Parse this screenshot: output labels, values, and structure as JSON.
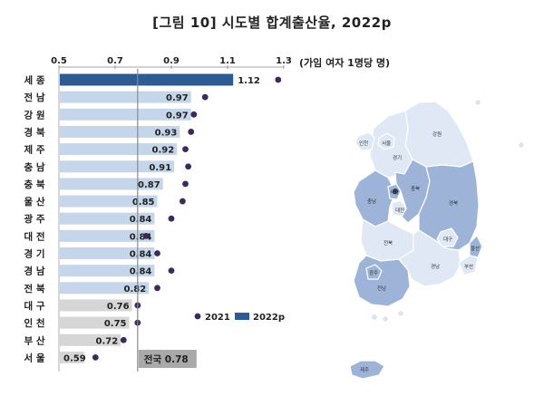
{
  "title": "[그림 10] 시도별 합계출산율, 2022p",
  "unit_note": "(가임 여자 1명당 명)",
  "colors": {
    "bar_2022_highlight": "#2f5b93",
    "bar_2022_normal": "#c6d6ea",
    "bar_2022_low": "#d6d6d6",
    "dot_2021": "#3b2a5a",
    "national_box": "#a9a9a9",
    "map_dark": "#9db4d8",
    "map_light": "#dfe8f4",
    "map_border": "#ffffff"
  },
  "chart_data": {
    "type": "bar",
    "orientation": "horizontal",
    "title": "[그림 10] 시도별 합계출산율, 2022p",
    "xlim": [
      0.5,
      1.3
    ],
    "xticks": [
      "0.5",
      "0.7",
      "0.9",
      "1.1",
      "1.3"
    ],
    "categories": [
      "세 종",
      "전 남",
      "강 원",
      "경 북",
      "제 주",
      "충 남",
      "충 북",
      "울 산",
      "광 주",
      "대 전",
      "경 기",
      "경 남",
      "전 북",
      "대 구",
      "인 천",
      "부 산",
      "서 울"
    ],
    "series": [
      {
        "name": "2022p",
        "type": "bar",
        "values": [
          1.12,
          0.97,
          0.97,
          0.93,
          0.92,
          0.91,
          0.87,
          0.85,
          0.84,
          0.84,
          0.84,
          0.84,
          0.82,
          0.76,
          0.75,
          0.72,
          0.59
        ],
        "labels": [
          "1.12",
          "0.97",
          "0.97",
          "0.93",
          "0.92",
          "0.91",
          "0.87",
          "0.85",
          "0.84",
          "0.84",
          "0.84",
          "0.84",
          "0.82",
          "0.76",
          "0.75",
          "0.72",
          "0.59"
        ]
      },
      {
        "name": "2021",
        "type": "scatter",
        "values": [
          1.28,
          1.02,
          0.98,
          0.97,
          0.95,
          0.96,
          0.95,
          0.94,
          0.9,
          0.81,
          0.85,
          0.9,
          0.85,
          0.78,
          0.78,
          0.73,
          0.63
        ]
      }
    ],
    "reference_line": {
      "label": "전국 0.78",
      "value": 0.78
    },
    "legend": [
      "2021",
      "2022p"
    ],
    "legend_position": "bottom-right"
  },
  "map": {
    "regions": [
      {
        "id": "seoul",
        "label": "서울",
        "shade": "light"
      },
      {
        "id": "incheon",
        "label": "인천",
        "shade": "light"
      },
      {
        "id": "gyeonggi",
        "label": "경기",
        "shade": "light"
      },
      {
        "id": "gangwon",
        "label": "강원",
        "shade": "light"
      },
      {
        "id": "chungbuk",
        "label": "충북",
        "shade": "dark"
      },
      {
        "id": "chungnam",
        "label": "충남",
        "shade": "dark"
      },
      {
        "id": "sejong",
        "label": "세종",
        "shade": "dark"
      },
      {
        "id": "daejeon",
        "label": "대전",
        "shade": "light"
      },
      {
        "id": "gyeongbuk",
        "label": "경북",
        "shade": "dark"
      },
      {
        "id": "daegu",
        "label": "대구",
        "shade": "light"
      },
      {
        "id": "jeonbuk",
        "label": "전북",
        "shade": "light"
      },
      {
        "id": "gwangju",
        "label": "광주",
        "shade": "dark"
      },
      {
        "id": "jeonnam",
        "label": "전남",
        "shade": "dark"
      },
      {
        "id": "gyeongnam",
        "label": "경남",
        "shade": "light"
      },
      {
        "id": "ulsan",
        "label": "울산",
        "shade": "dark"
      },
      {
        "id": "busan",
        "label": "부산",
        "shade": "light"
      },
      {
        "id": "jeju",
        "label": "제주",
        "shade": "dark"
      }
    ]
  }
}
